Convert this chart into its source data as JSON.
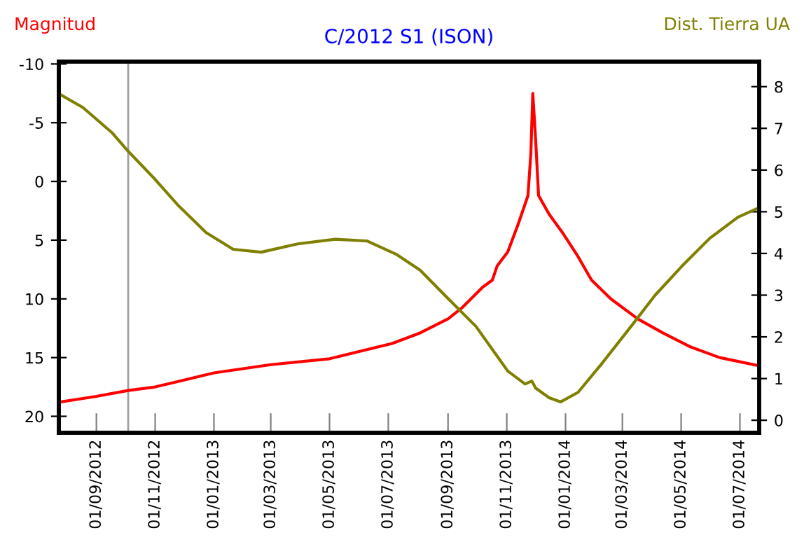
{
  "chart_data": {
    "type": "line",
    "title": "C/2012 S1 (ISON)",
    "ylabel": "Magnitud",
    "y2label": "Dist. Tierra UA",
    "series": [
      {
        "color": "#ff0000",
        "x": [
          "2012-07-24",
          "2012-09-01",
          "2012-10-04",
          "2012-11-01",
          "2013-01-01",
          "2013-03-01",
          "2013-05-01",
          "2013-07-05",
          "2013-08-03",
          "2013-09-01",
          "2013-09-15",
          "2013-10-07",
          "2013-10-17",
          "2013-10-22",
          "2013-11-02",
          "2013-11-13",
          "2013-11-23",
          "2013-11-26",
          "2013-11-28",
          "2013-12-01",
          "2013-12-04",
          "2013-12-15",
          "2013-12-30",
          "2014-01-14",
          "2014-01-28",
          "2014-02-17",
          "2014-03-17",
          "2014-04-12",
          "2014-05-11",
          "2014-06-10",
          "2014-07-21"
        ],
        "values": [
          18.8,
          18.3,
          17.8,
          17.5,
          16.3,
          15.6,
          15.1,
          13.8,
          12.9,
          11.7,
          10.8,
          9.0,
          8.4,
          7.2,
          6.0,
          3.6,
          1.2,
          -2.4,
          -7.5,
          -3.5,
          1.2,
          2.8,
          4.5,
          6.4,
          8.4,
          10.0,
          11.7,
          12.9,
          14.1,
          15.0,
          15.7
        ]
      },
      {
        "color": "#808000",
        "axis": "y2",
        "x": [
          "2012-07-24",
          "2012-08-18",
          "2012-09-17",
          "2012-10-04",
          "2012-10-31",
          "2012-11-25",
          "2012-12-24",
          "2013-01-21",
          "2013-02-19",
          "2013-03-29",
          "2013-05-07",
          "2013-06-09",
          "2013-07-10",
          "2013-08-03",
          "2013-09-01",
          "2013-09-30",
          "2013-11-02",
          "2013-11-20",
          "2013-11-27",
          "2013-12-01",
          "2013-12-15",
          "2013-12-27",
          "2014-01-14",
          "2014-02-07",
          "2014-03-10",
          "2014-04-04",
          "2014-05-02",
          "2014-05-31",
          "2014-06-29",
          "2014-07-21"
        ],
        "values": [
          7.83,
          7.5,
          6.9,
          6.45,
          5.8,
          5.15,
          4.5,
          4.1,
          4.03,
          4.23,
          4.34,
          4.3,
          3.97,
          3.6,
          2.92,
          2.25,
          1.18,
          0.87,
          0.94,
          0.77,
          0.54,
          0.44,
          0.67,
          1.34,
          2.25,
          3.0,
          3.7,
          4.37,
          4.87,
          5.1
        ]
      }
    ],
    "xlim": [
      "2012-07-24",
      "2014-07-21"
    ],
    "xticks": [
      {
        "value": "2012-09-01",
        "label": "01/09/2012"
      },
      {
        "value": "2012-11-01",
        "label": "01/11/2012"
      },
      {
        "value": "2013-01-01",
        "label": "01/01/2013"
      },
      {
        "value": "2013-03-01",
        "label": "01/03/2013"
      },
      {
        "value": "2013-05-01",
        "label": "01/05/2013"
      },
      {
        "value": "2013-07-01",
        "label": "01/07/2013"
      },
      {
        "value": "2013-09-01",
        "label": "01/09/2013"
      },
      {
        "value": "2013-11-01",
        "label": "01/11/2013"
      },
      {
        "value": "2014-01-01",
        "label": "01/01/2014"
      },
      {
        "value": "2014-03-01",
        "label": "01/03/2014"
      },
      {
        "value": "2014-05-01",
        "label": "01/05/2014"
      },
      {
        "value": "2014-07-01",
        "label": "01/07/2014"
      }
    ],
    "ylim": [
      21.4,
      -10.2
    ],
    "yticks": [
      -10,
      -5,
      0,
      5,
      10,
      15,
      20
    ],
    "y2lim": [
      -0.3,
      8.6
    ],
    "y2ticks": [
      0,
      1,
      2,
      3,
      4,
      5,
      6,
      7,
      8
    ],
    "ref_lines": [
      {
        "axis": "x",
        "value": "2012-10-04",
        "color": "#a0a0a0"
      }
    ],
    "grid": false,
    "legend": false
  }
}
